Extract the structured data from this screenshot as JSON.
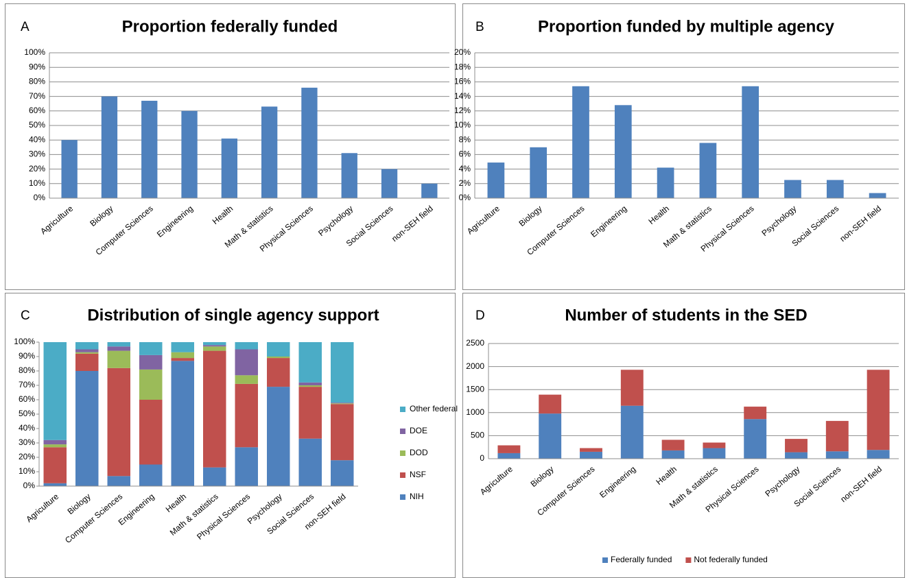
{
  "chart_data": [
    {
      "type": "bar",
      "label": "A",
      "title": "Proportion federally funded",
      "categories": [
        "Agriculture",
        "Biology",
        "Computer Sciences",
        "Engineering",
        "Health",
        "Math & statistics",
        "Physical Sciences",
        "Psychology",
        "Social Sciences",
        "non-SEH field"
      ],
      "values": [
        40,
        70,
        67,
        60,
        41,
        63,
        76,
        31,
        20,
        10
      ],
      "color": "#4f81bd",
      "ylim": [
        0,
        100
      ],
      "yticks": [
        {
          "value": 0,
          "label": "0%"
        },
        {
          "value": 10,
          "label": "10%"
        },
        {
          "value": 20,
          "label": "20%"
        },
        {
          "value": 30,
          "label": "30%"
        },
        {
          "value": 40,
          "label": "40%"
        },
        {
          "value": 50,
          "label": "50%"
        },
        {
          "value": 60,
          "label": "60%"
        },
        {
          "value": 70,
          "label": "70%"
        },
        {
          "value": 80,
          "label": "80%"
        },
        {
          "value": 90,
          "label": "90%"
        },
        {
          "value": 100,
          "label": "100%"
        }
      ],
      "grid": true
    },
    {
      "type": "bar",
      "label": "B",
      "title": "Proportion funded by multiple agency",
      "categories": [
        "Agriculture",
        "Biology",
        "Computer Sciences",
        "Engineering",
        "Health",
        "Math & statistics",
        "Physical Sciences",
        "Psychology",
        "Social Sciences",
        "non-SEH field"
      ],
      "values": [
        4.9,
        7.0,
        15.4,
        12.8,
        4.2,
        7.6,
        15.4,
        2.5,
        2.5,
        0.7
      ],
      "color": "#4f81bd",
      "ylim": [
        0,
        20
      ],
      "yticks": [
        {
          "value": 0,
          "label": "0%"
        },
        {
          "value": 2,
          "label": "2%"
        },
        {
          "value": 4,
          "label": "4%"
        },
        {
          "value": 6,
          "label": "6%"
        },
        {
          "value": 8,
          "label": "8%"
        },
        {
          "value": 10,
          "label": "10%"
        },
        {
          "value": 12,
          "label": "12%"
        },
        {
          "value": 14,
          "label": "14%"
        },
        {
          "value": 16,
          "label": "16%"
        },
        {
          "value": 18,
          "label": "18%"
        },
        {
          "value": 20,
          "label": "20%"
        }
      ],
      "grid": true
    },
    {
      "type": "stacked_bar",
      "label": "C",
      "title": "Distribution of single agency support",
      "categories": [
        "Agriculture",
        "Biology",
        "Computer Sciences",
        "Engineering",
        "Health",
        "Math & statistics",
        "Physical Sciences",
        "Psychology",
        "Social Sciences",
        "non-SEH field"
      ],
      "series": [
        {
          "name": "NIH",
          "color": "#4f81bd",
          "values": [
            2,
            80,
            7,
            15,
            87,
            13,
            27,
            69,
            33,
            18
          ]
        },
        {
          "name": "NSF",
          "color": "#c0504d",
          "values": [
            25,
            12,
            75,
            45,
            2,
            81,
            44,
            20,
            36,
            39
          ]
        },
        {
          "name": "DOD",
          "color": "#9bbb59",
          "values": [
            2,
            1,
            12,
            21,
            4,
            3,
            6,
            1,
            1,
            0.5
          ]
        },
        {
          "name": "DOE",
          "color": "#8064a2",
          "values": [
            3,
            2,
            3,
            10,
            0,
            1,
            18,
            0,
            2,
            0.5
          ]
        },
        {
          "name": "Other federal",
          "color": "#4bacc6",
          "values": [
            68,
            5,
            3,
            9,
            7,
            2,
            5,
            10,
            28,
            42
          ]
        }
      ],
      "ylim": [
        0,
        100
      ],
      "yticks": [
        {
          "value": 0,
          "label": "0%"
        },
        {
          "value": 10,
          "label": "10%"
        },
        {
          "value": 20,
          "label": "20%"
        },
        {
          "value": 30,
          "label": "30%"
        },
        {
          "value": 40,
          "label": "40%"
        },
        {
          "value": 50,
          "label": "50%"
        },
        {
          "value": 60,
          "label": "60%"
        },
        {
          "value": 70,
          "label": "70%"
        },
        {
          "value": 80,
          "label": "80%"
        },
        {
          "value": 90,
          "label": "90%"
        },
        {
          "value": 100,
          "label": "100%"
        }
      ],
      "grid": false,
      "legend": "right"
    },
    {
      "type": "stacked_bar",
      "label": "D",
      "title": "Number of students in the SED",
      "categories": [
        "Agriculture",
        "Biology",
        "Computer Sciences",
        "Engineering",
        "Health",
        "Math & statistics",
        "Physical Sciences",
        "Psychology",
        "Social Sciences",
        "non-SEH field"
      ],
      "series": [
        {
          "name": "Federally funded",
          "color": "#4f81bd",
          "values": [
            120,
            980,
            150,
            1150,
            180,
            230,
            860,
            140,
            160,
            190
          ]
        },
        {
          "name": "Not federally funded",
          "color": "#c0504d",
          "values": [
            170,
            410,
            80,
            780,
            230,
            120,
            270,
            290,
            660,
            1740
          ]
        }
      ],
      "ylim": [
        0,
        2500
      ],
      "yticks": [
        0,
        500,
        1000,
        1500,
        2000,
        2500
      ],
      "grid": true,
      "legend": "bottom"
    }
  ]
}
